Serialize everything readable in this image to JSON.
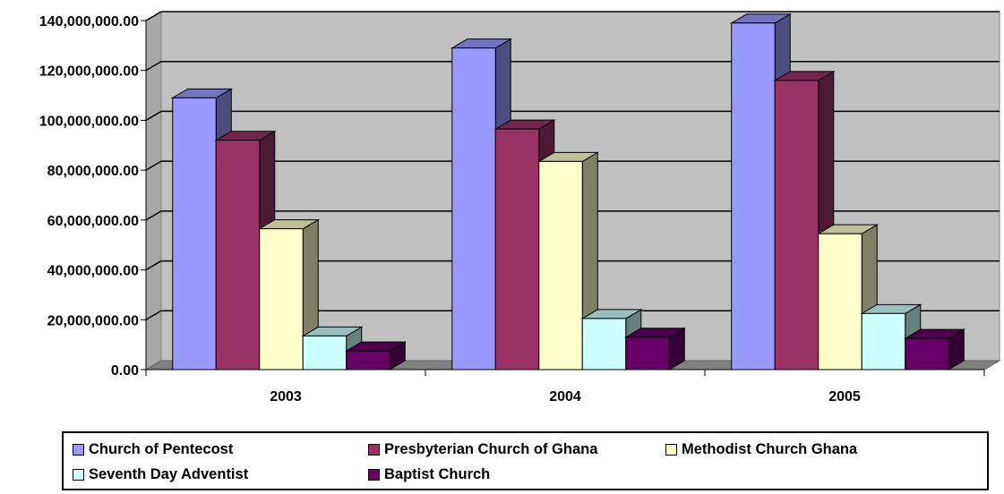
{
  "chart_data": {
    "type": "bar",
    "categories": [
      "2003",
      "2004",
      "2005"
    ],
    "series": [
      {
        "name": "Church of Pentecost",
        "values": [
          109000000,
          129000000,
          139000000
        ],
        "color": "#9999FF"
      },
      {
        "name": "Presbyterian Church of Ghana",
        "values": [
          92000000,
          96500000,
          116000000
        ],
        "color": "#993366"
      },
      {
        "name": "Methodist Church Ghana",
        "values": [
          56500000,
          83500000,
          54500000
        ],
        "color": "#FFFFCC"
      },
      {
        "name": "Seventh Day Adventist",
        "values": [
          13500000,
          20500000,
          22500000
        ],
        "color": "#CCFFFF"
      },
      {
        "name": "Baptist Church",
        "values": [
          7500000,
          13000000,
          12500000
        ],
        "color": "#660066"
      }
    ],
    "ylim": [
      0,
      140000000
    ],
    "yticks": [
      "0.00",
      "20,000,000.00",
      "40,000,000.00",
      "60,000,000.00",
      "80,000,000.00",
      "100,000,000.00",
      "120,000,000.00",
      "140,000,000.00"
    ],
    "title": "",
    "xlabel": "",
    "ylabel": "",
    "grid": true,
    "legend_position": "bottom",
    "wall_color": "#C0C0C0"
  }
}
